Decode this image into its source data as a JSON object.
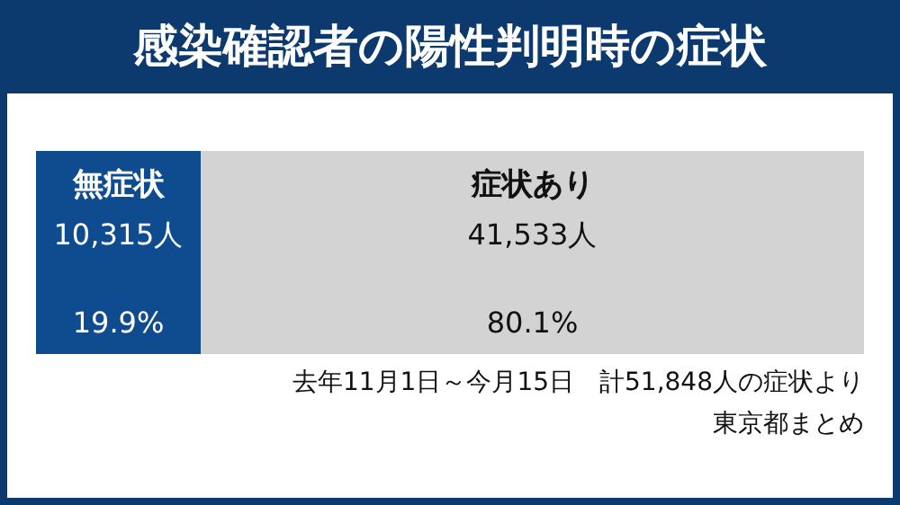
{
  "chart_data": {
    "type": "bar",
    "orientation": "horizontal",
    "stacked": true,
    "title": "感染確認者の陽性判明時の症状",
    "categories": [
      null
    ],
    "series": [
      {
        "name": "無症状",
        "color": "#0f4c8f",
        "values": [
          10315
        ],
        "value_labels": [
          "10,315人"
        ]
      },
      {
        "name": "症状あり",
        "color": "#d3d3d3",
        "values": [
          41533
        ],
        "value_labels": [
          "41,533人"
        ]
      }
    ],
    "annotations": [
      "19.9%",
      "80.1%",
      "去年11月1日～今月15日　計51,848人の症状より",
      "東京都まとめ"
    ]
  }
}
